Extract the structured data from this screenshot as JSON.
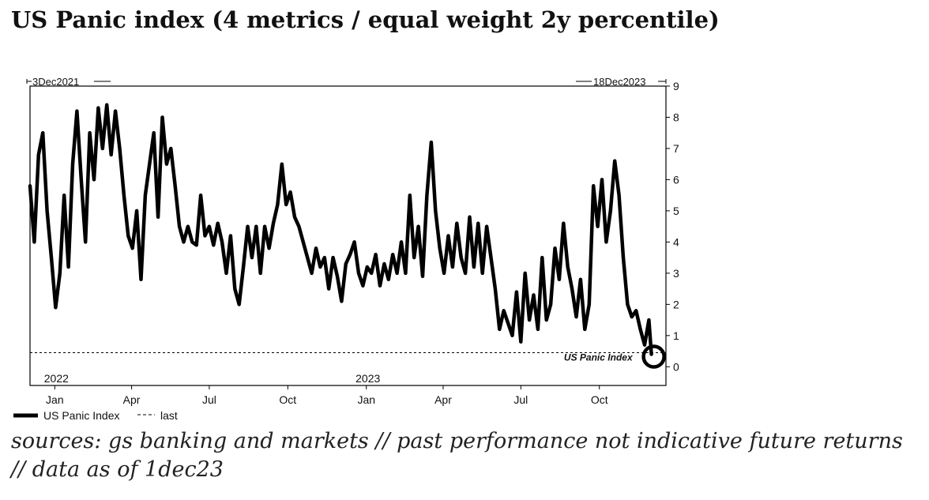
{
  "title": "US Panic index (4 metrics / equal weight 2y percentile)",
  "source_line1": "sources: gs banking and markets // past performance not indicative future returns",
  "source_line2": "// data as of 1dec23",
  "chart_data": {
    "type": "line",
    "start_label": "3Dec2021",
    "end_label": "18Dec2023",
    "x_tick_labels": [
      "Jan",
      "Apr",
      "Jul",
      "Oct",
      "Jan",
      "Apr",
      "Jul",
      "Oct"
    ],
    "x_tick_dates": [
      "2022-01-01",
      "2022-04-01",
      "2022-07-01",
      "2022-10-01",
      "2023-01-01",
      "2023-04-01",
      "2023-07-01",
      "2023-10-01"
    ],
    "year_labels": [
      {
        "label": "2022",
        "date": "2022-01-01"
      },
      {
        "label": "2023",
        "date": "2023-01-01"
      }
    ],
    "y_ticks": [
      0,
      1,
      2,
      3,
      4,
      5,
      6,
      7,
      8,
      9
    ],
    "ylim": [
      -0.6,
      9
    ],
    "xlim": [
      "2021-12-03",
      "2023-12-18"
    ],
    "grid": false,
    "legend": {
      "placement": "bottom-left",
      "entries": [
        {
          "label": "US Panic Index",
          "style": "solid"
        },
        {
          "label": "last",
          "style": "dashed"
        }
      ]
    },
    "series": [
      {
        "name": "US Panic Index",
        "color": "#000000",
        "x": [
          "2021-12-03",
          "2021-12-08",
          "2021-12-13",
          "2021-12-18",
          "2021-12-23",
          "2021-12-28",
          "2022-01-02",
          "2022-01-07",
          "2022-01-12",
          "2022-01-17",
          "2022-01-22",
          "2022-01-27",
          "2022-02-01",
          "2022-02-06",
          "2022-02-11",
          "2022-02-16",
          "2022-02-21",
          "2022-02-26",
          "2022-03-03",
          "2022-03-08",
          "2022-03-13",
          "2022-03-18",
          "2022-03-23",
          "2022-03-28",
          "2022-04-02",
          "2022-04-07",
          "2022-04-12",
          "2022-04-17",
          "2022-04-22",
          "2022-04-27",
          "2022-05-02",
          "2022-05-07",
          "2022-05-12",
          "2022-05-17",
          "2022-05-22",
          "2022-05-27",
          "2022-06-01",
          "2022-06-06",
          "2022-06-11",
          "2022-06-16",
          "2022-06-21",
          "2022-06-26",
          "2022-07-01",
          "2022-07-06",
          "2022-07-11",
          "2022-07-16",
          "2022-07-21",
          "2022-07-26",
          "2022-07-31",
          "2022-08-05",
          "2022-08-10",
          "2022-08-15",
          "2022-08-20",
          "2022-08-25",
          "2022-08-30",
          "2022-09-04",
          "2022-09-09",
          "2022-09-14",
          "2022-09-19",
          "2022-09-24",
          "2022-09-29",
          "2022-10-04",
          "2022-10-09",
          "2022-10-14",
          "2022-10-19",
          "2022-10-24",
          "2022-10-29",
          "2022-11-03",
          "2022-11-08",
          "2022-11-13",
          "2022-11-18",
          "2022-11-23",
          "2022-11-28",
          "2022-12-03",
          "2022-12-08",
          "2022-12-13",
          "2022-12-18",
          "2022-12-23",
          "2022-12-28",
          "2023-01-02",
          "2023-01-07",
          "2023-01-12",
          "2023-01-17",
          "2023-01-22",
          "2023-01-27",
          "2023-02-01",
          "2023-02-06",
          "2023-02-11",
          "2023-02-16",
          "2023-02-21",
          "2023-02-26",
          "2023-03-03",
          "2023-03-08",
          "2023-03-13",
          "2023-03-18",
          "2023-03-23",
          "2023-03-28",
          "2023-04-02",
          "2023-04-07",
          "2023-04-12",
          "2023-04-17",
          "2023-04-22",
          "2023-04-27",
          "2023-05-02",
          "2023-05-07",
          "2023-05-12",
          "2023-05-17",
          "2023-05-22",
          "2023-05-27",
          "2023-06-01",
          "2023-06-06",
          "2023-06-11",
          "2023-06-16",
          "2023-06-21",
          "2023-06-26",
          "2023-07-01",
          "2023-07-06",
          "2023-07-11",
          "2023-07-16",
          "2023-07-21",
          "2023-07-26",
          "2023-07-31",
          "2023-08-05",
          "2023-08-10",
          "2023-08-15",
          "2023-08-20",
          "2023-08-25",
          "2023-08-30",
          "2023-09-04",
          "2023-09-09",
          "2023-09-14",
          "2023-09-19",
          "2023-09-24",
          "2023-09-29",
          "2023-10-04",
          "2023-10-09",
          "2023-10-14",
          "2023-10-19",
          "2023-10-24",
          "2023-10-29",
          "2023-11-03",
          "2023-11-08",
          "2023-11-13",
          "2023-11-18",
          "2023-11-23",
          "2023-11-28",
          "2023-12-01"
        ],
        "y": [
          5.8,
          4.0,
          6.8,
          7.5,
          5.0,
          3.5,
          1.9,
          3.0,
          5.5,
          3.2,
          6.5,
          8.2,
          6.0,
          4.0,
          7.5,
          6.0,
          8.3,
          7.0,
          8.4,
          6.8,
          8.2,
          7.0,
          5.5,
          4.2,
          3.8,
          5.0,
          2.8,
          5.5,
          6.5,
          7.5,
          4.8,
          8.0,
          6.5,
          7.0,
          5.8,
          4.5,
          4.0,
          4.5,
          4.0,
          3.9,
          5.5,
          4.2,
          4.5,
          3.9,
          4.6,
          4.0,
          3.0,
          4.2,
          2.5,
          2.0,
          3.2,
          4.5,
          3.5,
          4.5,
          3.0,
          4.5,
          3.8,
          4.6,
          5.2,
          6.5,
          5.2,
          5.6,
          4.8,
          4.5,
          4.0,
          3.5,
          3.0,
          3.8,
          3.2,
          3.5,
          2.5,
          3.5,
          2.9,
          2.1,
          3.3,
          3.6,
          4.0,
          3.0,
          2.6,
          3.2,
          3.0,
          3.6,
          2.6,
          3.3,
          2.8,
          3.6,
          3.0,
          4.0,
          3.0,
          5.5,
          3.5,
          4.5,
          2.9,
          5.5,
          7.2,
          5.0,
          3.8,
          3.0,
          4.2,
          3.2,
          4.6,
          3.5,
          3.0,
          4.8,
          3.2,
          4.6,
          3.0,
          4.5,
          3.5,
          2.5,
          1.2,
          1.8,
          1.4,
          1.0,
          2.4,
          0.8,
          3.0,
          1.5,
          2.3,
          1.2,
          3.5,
          1.5,
          2.0,
          3.8,
          2.8,
          4.6,
          3.2,
          2.5,
          1.6,
          2.8,
          1.2,
          2.0,
          5.8,
          4.5,
          6.0,
          4.0,
          5.0,
          6.6,
          5.5,
          3.5,
          2.0,
          1.6,
          1.8,
          1.2,
          0.7,
          1.5,
          0.4
        ]
      }
    ],
    "last_value": 0.45,
    "annotation": "US Panic Index"
  }
}
